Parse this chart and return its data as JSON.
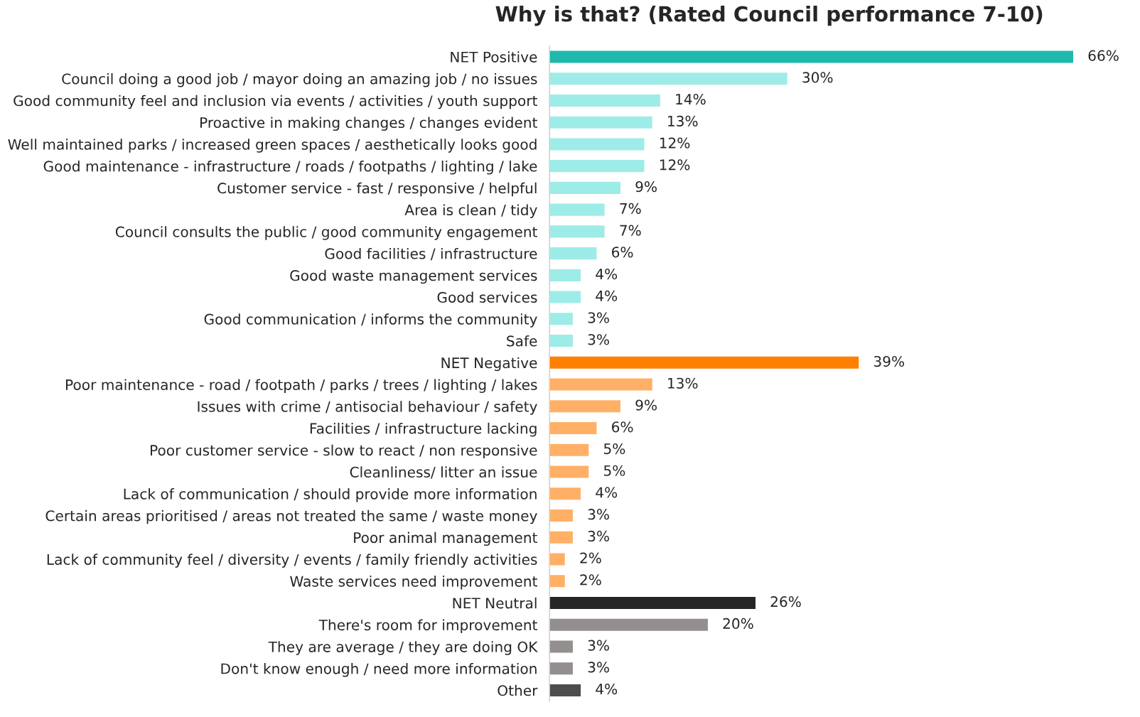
{
  "chart_data": {
    "type": "bar",
    "orientation": "horizontal",
    "title": "Why is that? (Rated Council performance 7-10)",
    "categories": [
      "NET Positive",
      "Council doing a good job / mayor doing an amazing job / no issues",
      "Good community feel and inclusion via events / activities / youth support",
      "Proactive in making changes / changes evident",
      "Well maintained parks / increased green spaces / aesthetically looks good",
      "Good maintenance - infrastructure / roads / footpaths / lighting / lake",
      "Customer service - fast / responsive / helpful",
      "Area is clean / tidy",
      "Council consults the public / good community engagement",
      "Good facilities / infrastructure",
      "Good waste management services",
      "Good services",
      "Good communication / informs the community",
      "Safe",
      "NET Negative",
      "Poor maintenance - road / footpath / parks / trees / lighting / lakes",
      "Issues with crime / antisocial behaviour / safety",
      "Facilities / infrastructure lacking",
      "Poor customer service - slow to react / non responsive",
      "Cleanliness/ litter an issue",
      "Lack of communication / should provide more information",
      "Certain areas prioritised / areas not treated the same / waste money",
      "Poor animal management",
      "Lack of community feel / diversity / events / family friendly activities",
      "Waste services need improvement",
      "NET Neutral",
      "There's room for improvement",
      "They are average / they are doing OK",
      "Don't know enough / need more information",
      "Other"
    ],
    "values": [
      66,
      30,
      14,
      13,
      12,
      12,
      9,
      7,
      7,
      6,
      4,
      4,
      3,
      3,
      39,
      13,
      9,
      6,
      5,
      5,
      4,
      3,
      3,
      2,
      2,
      26,
      20,
      3,
      3,
      4
    ],
    "value_labels": [
      "66%",
      "30%",
      "14%",
      "13%",
      "12%",
      "12%",
      "9%",
      "7%",
      "7%",
      "6%",
      "4%",
      "4%",
      "3%",
      "3%",
      "39%",
      "13%",
      "9%",
      "6%",
      "5%",
      "5%",
      "4%",
      "3%",
      "3%",
      "2%",
      "2%",
      "26%",
      "20%",
      "3%",
      "3%",
      "4%"
    ],
    "colors": [
      "#20b8ac",
      "#9eece8",
      "#9eece8",
      "#9eece8",
      "#9eece8",
      "#9eece8",
      "#9eece8",
      "#9eece8",
      "#9eece8",
      "#9eece8",
      "#9eece8",
      "#9eece8",
      "#9eece8",
      "#9eece8",
      "#ff7f00",
      "#ffb066",
      "#ffb066",
      "#ffb066",
      "#ffb066",
      "#ffb066",
      "#ffb066",
      "#ffb066",
      "#ffb066",
      "#ffb066",
      "#ffb066",
      "#262626",
      "#948f8f",
      "#948f8f",
      "#948f8f",
      "#4d4d4d"
    ],
    "grid": false,
    "legend": false
  }
}
